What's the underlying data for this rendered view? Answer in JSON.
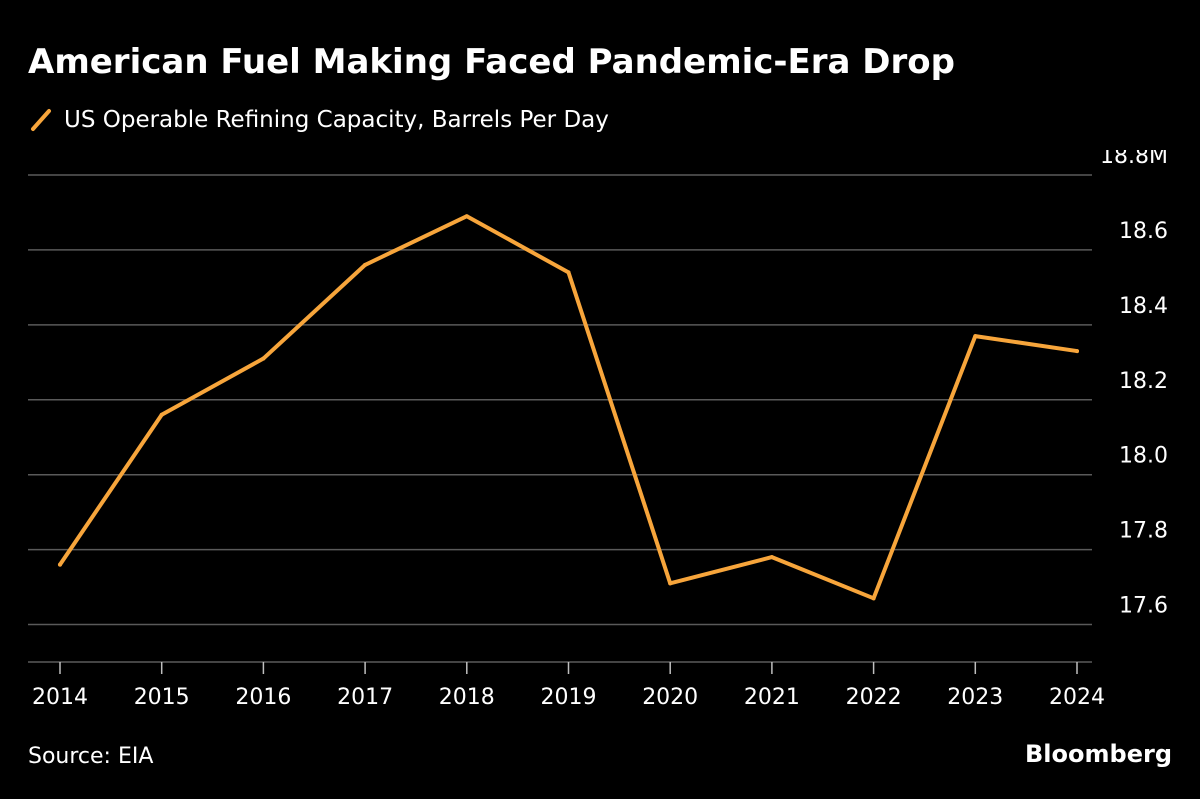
{
  "colors": {
    "background": "#000000",
    "text": "#ffffff",
    "series": "#f7a53b",
    "grid": "#5a5a5a"
  },
  "chart_data": {
    "type": "line",
    "title": "American Fuel Making Faced Pandemic-Era Drop",
    "series": [
      {
        "name": "US Operable Refining Capacity, Barrels Per Day",
        "values": [
          17.76,
          18.16,
          18.31,
          18.56,
          18.69,
          18.54,
          17.71,
          17.78,
          17.67,
          18.37,
          18.33
        ]
      }
    ],
    "x": [
      2014,
      2015,
      2016,
      2017,
      2018,
      2019,
      2020,
      2021,
      2022,
      2023,
      2024
    ],
    "x_tick_labels": [
      "2014",
      "2015",
      "2016",
      "2017",
      "2018",
      "2019",
      "2020",
      "2021",
      "2022",
      "2023",
      "2024"
    ],
    "ylim": [
      17.5,
      18.8
    ],
    "y_ticks": [
      17.6,
      17.8,
      18.0,
      18.2,
      18.4,
      18.6,
      18.8
    ],
    "y_tick_labels": [
      "17.6",
      "17.8",
      "18.0",
      "18.2",
      "18.4",
      "18.6",
      "18.8M"
    ],
    "y_axis_side": "right",
    "grid": true,
    "legend_position": "top-left",
    "xlabel": "",
    "ylabel": ""
  },
  "footer": {
    "source": "Source: EIA",
    "brand": "Bloomberg"
  }
}
